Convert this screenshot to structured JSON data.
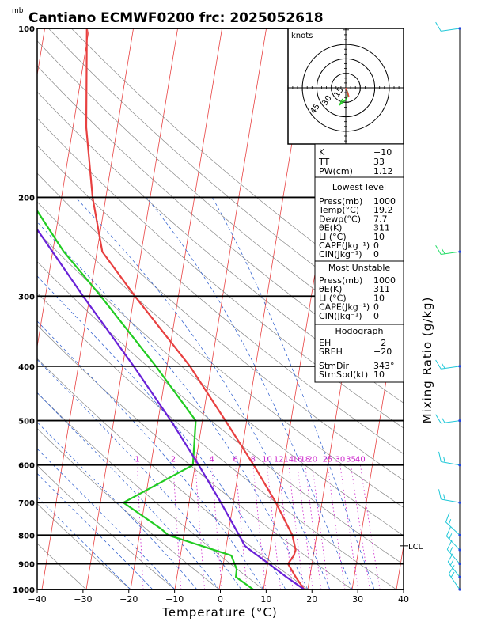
{
  "chart_data": {
    "type": "skew-t",
    "title": "Cantiano ECMWF0200 frc: 2025052618",
    "pressure_unit": "mb",
    "xlabel": "Temperature (°C)",
    "ylabel_right": "Mixing Ratio (g/kg)",
    "x_ticks": [
      -40,
      -30,
      -20,
      -10,
      0,
      10,
      20,
      30,
      40
    ],
    "p_ticks": [
      100,
      200,
      300,
      400,
      500,
      600,
      700,
      800,
      900,
      1000
    ],
    "temperature_profile": [
      {
        "p": 1000,
        "t": 19.2
      },
      {
        "p": 950,
        "t": 16.8
      },
      {
        "p": 900,
        "t": 14.6
      },
      {
        "p": 870,
        "t": 15.6
      },
      {
        "p": 850,
        "t": 15.8
      },
      {
        "p": 800,
        "t": 14.5
      },
      {
        "p": 700,
        "t": 9.6
      },
      {
        "p": 600,
        "t": 3.2
      },
      {
        "p": 500,
        "t": -4.8
      },
      {
        "p": 400,
        "t": -14.8
      },
      {
        "p": 300,
        "t": -29.8
      },
      {
        "p": 250,
        "t": -38.8
      },
      {
        "p": 200,
        "t": -43.0
      },
      {
        "p": 150,
        "t": -47.0
      },
      {
        "p": 100,
        "t": -50.5
      }
    ],
    "dewpoint_profile": [
      {
        "p": 1000,
        "t": 7.7
      },
      {
        "p": 950,
        "t": 3.3
      },
      {
        "p": 920,
        "t": 3.2
      },
      {
        "p": 870,
        "t": 1.5
      },
      {
        "p": 800,
        "t": -13.5
      },
      {
        "p": 780,
        "t": -15.3
      },
      {
        "p": 700,
        "t": -24.8
      },
      {
        "p": 600,
        "t": -10.5
      },
      {
        "p": 500,
        "t": -11.5
      },
      {
        "p": 400,
        "t": -22.5
      },
      {
        "p": 300,
        "t": -37.5
      },
      {
        "p": 250,
        "t": -47.5
      },
      {
        "p": 200,
        "t": -57.5
      },
      {
        "p": 150,
        "t": -69.0
      },
      {
        "p": 100,
        "t": -81.0
      }
    ],
    "parcel_profile": [
      {
        "p": 1000,
        "t": 19.2
      },
      {
        "p": 950,
        "t": 14.7
      },
      {
        "p": 900,
        "t": 10.3
      },
      {
        "p": 850,
        "t": 5.5
      },
      {
        "p": 836,
        "t": 4.2
      },
      {
        "p": 800,
        "t": 2.5
      },
      {
        "p": 700,
        "t": -2.8
      },
      {
        "p": 600,
        "t": -9.2
      },
      {
        "p": 500,
        "t": -17.1
      },
      {
        "p": 400,
        "t": -27.5
      },
      {
        "p": 300,
        "t": -41.5
      },
      {
        "p": 200,
        "t": -60.5
      },
      {
        "p": 150,
        "t": -72.0
      },
      {
        "p": 120,
        "t": -80.0
      }
    ],
    "mixing_ratio_lines": [
      "1",
      "2",
      "3",
      "4",
      "6",
      "8",
      "10",
      "12",
      "14",
      "16",
      "18",
      "20",
      "25",
      "30",
      "35",
      "40"
    ],
    "lcl": {
      "p": 836,
      "label": "LCL"
    },
    "hodograph": {
      "unit_label": "knots",
      "rings": [
        "15",
        "30",
        "45"
      ]
    },
    "indices": [
      {
        "label": "K",
        "value": "−10"
      },
      {
        "label": "TT",
        "value": "33"
      },
      {
        "label": "PW(cm)",
        "value": "1.12"
      }
    ],
    "lowest_level": {
      "header": "Lowest level",
      "rows": [
        {
          "label": "Press(mb)",
          "value": "1000"
        },
        {
          "label": "Temp(°C)",
          "value": "19.2"
        },
        {
          "label": "Dewp(°C)",
          "value": "7.7"
        },
        {
          "label": "θE(K)",
          "value": "311"
        },
        {
          "label": "LI (°C)",
          "value": "10"
        },
        {
          "label": "CAPE(Jkg⁻¹)",
          "value": "0"
        },
        {
          "label": "CIN(Jkg⁻¹)",
          "value": "0"
        }
      ]
    },
    "most_unstable": {
      "header": "Most Unstable",
      "rows": [
        {
          "label": "Press(mb)",
          "value": "1000"
        },
        {
          "label": "θE(K)",
          "value": "311"
        },
        {
          "label": "LI (°C)",
          "value": "10"
        },
        {
          "label": "CAPE(Jkg⁻¹)",
          "value": "0"
        },
        {
          "label": "CIN(Jkg⁻¹)",
          "value": "0"
        }
      ]
    },
    "hodograph_table": {
      "header": "Hodograph",
      "rows": [
        {
          "label": "EH",
          "value": "−2"
        },
        {
          "label": "SREH",
          "value": "−20"
        },
        {
          "label": "StmDir",
          "value": "343°"
        },
        {
          "label": "StmSpd(kt)",
          "value": "10"
        }
      ]
    },
    "wind_barbs_pressure_levels": [
      100,
      250,
      400,
      500,
      600,
      700,
      800,
      850,
      900,
      950,
      1000
    ],
    "colors": {
      "temperature": "#e84040",
      "dewpoint": "#22cc22",
      "parcel": "#6a22d8",
      "isotherm": "#e84040",
      "dry_adiabat": "#888888",
      "moist_adiabat": "#2255cc",
      "mixing_ratio": "#cc22cc",
      "barbs": "#20c8d8"
    }
  }
}
